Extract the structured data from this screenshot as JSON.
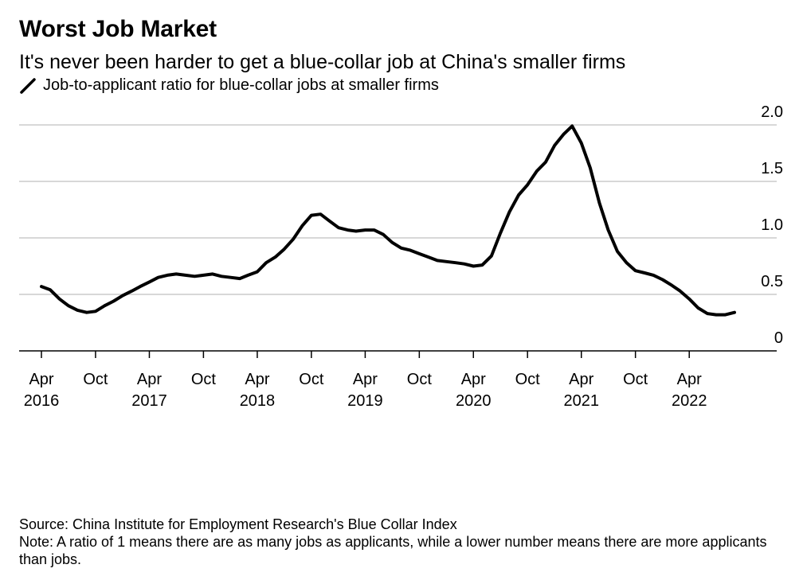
{
  "header": {
    "title": "Worst Job Market",
    "subtitle": "It's never been harder to get a blue-collar job at China's smaller firms"
  },
  "legend": {
    "label": "Job-to-applicant ratio for blue-collar jobs at smaller firms",
    "icon": "line-swatch-icon"
  },
  "footer": {
    "source": "Source: China Institute for Employment Research's Blue Collar Index",
    "note": "Note: A ratio of 1 means there are as many jobs as applicants, while a lower number means there are more applicants than jobs."
  },
  "chart_data": {
    "type": "line",
    "title": "Worst Job Market",
    "subtitle": "It's never been harder to get a blue-collar job at China's smaller firms",
    "xlabel": "",
    "ylabel": "",
    "ylim": [
      0,
      2.0
    ],
    "y_ticks": [
      0,
      0.5,
      1.0,
      1.5,
      2.0
    ],
    "y_tick_labels": [
      "0",
      "0.5",
      "1.0",
      "1.5",
      "2.0"
    ],
    "y_axis_position": "right",
    "grid": "horizontal",
    "x_ticks": [
      {
        "date": "2016-04",
        "label": "Apr",
        "year": "2016"
      },
      {
        "date": "2016-10",
        "label": "Oct",
        "year": ""
      },
      {
        "date": "2017-04",
        "label": "Apr",
        "year": "2017"
      },
      {
        "date": "2017-10",
        "label": "Oct",
        "year": ""
      },
      {
        "date": "2018-04",
        "label": "Apr",
        "year": "2018"
      },
      {
        "date": "2018-10",
        "label": "Oct",
        "year": ""
      },
      {
        "date": "2019-04",
        "label": "Apr",
        "year": "2019"
      },
      {
        "date": "2019-10",
        "label": "Oct",
        "year": ""
      },
      {
        "date": "2020-04",
        "label": "Apr",
        "year": "2020"
      },
      {
        "date": "2020-10",
        "label": "Oct",
        "year": ""
      },
      {
        "date": "2021-04",
        "label": "Apr",
        "year": "2021"
      },
      {
        "date": "2021-10",
        "label": "Oct",
        "year": ""
      },
      {
        "date": "2022-04",
        "label": "Apr",
        "year": "2022"
      }
    ],
    "series": [
      {
        "name": "Job-to-applicant ratio for blue-collar jobs at smaller firms",
        "color": "#000000",
        "x": [
          "2016-04",
          "2016-05",
          "2016-06",
          "2016-07",
          "2016-08",
          "2016-09",
          "2016-10",
          "2016-11",
          "2016-12",
          "2017-01",
          "2017-02",
          "2017-03",
          "2017-04",
          "2017-05",
          "2017-06",
          "2017-07",
          "2017-08",
          "2017-09",
          "2017-10",
          "2017-11",
          "2017-12",
          "2018-01",
          "2018-02",
          "2018-03",
          "2018-04",
          "2018-05",
          "2018-06",
          "2018-07",
          "2018-08",
          "2018-09",
          "2018-10",
          "2018-11",
          "2018-12",
          "2019-01",
          "2019-02",
          "2019-03",
          "2019-04",
          "2019-05",
          "2019-06",
          "2019-07",
          "2019-08",
          "2019-09",
          "2019-10",
          "2019-11",
          "2019-12",
          "2020-01",
          "2020-02",
          "2020-03",
          "2020-04",
          "2020-05",
          "2020-06",
          "2020-07",
          "2020-08",
          "2020-09",
          "2020-10",
          "2020-11",
          "2020-12",
          "2021-01",
          "2021-02",
          "2021-03",
          "2021-04",
          "2021-05",
          "2021-06",
          "2021-07",
          "2021-08",
          "2021-09",
          "2021-10",
          "2021-11",
          "2021-12",
          "2022-01",
          "2022-02",
          "2022-03",
          "2022-04",
          "2022-05",
          "2022-06",
          "2022-07",
          "2022-08",
          "2022-09"
        ],
        "y": [
          0.57,
          0.54,
          0.46,
          0.4,
          0.36,
          0.34,
          0.35,
          0.4,
          0.44,
          0.49,
          0.53,
          0.57,
          0.61,
          0.65,
          0.67,
          0.68,
          0.67,
          0.66,
          0.67,
          0.68,
          0.66,
          0.65,
          0.64,
          0.67,
          0.7,
          0.78,
          0.83,
          0.9,
          0.99,
          1.11,
          1.2,
          1.21,
          1.15,
          1.09,
          1.07,
          1.06,
          1.07,
          1.07,
          1.03,
          0.96,
          0.91,
          0.89,
          0.86,
          0.83,
          0.8,
          0.79,
          0.78,
          0.77,
          0.75,
          0.76,
          0.84,
          1.04,
          1.23,
          1.38,
          1.47,
          1.59,
          1.67,
          1.82,
          1.92,
          1.99,
          1.84,
          1.62,
          1.31,
          1.07,
          0.88,
          0.78,
          0.71,
          0.69,
          0.67,
          0.63,
          0.58,
          0.53,
          0.46,
          0.38,
          0.33,
          0.32,
          0.32,
          0.34
        ]
      }
    ]
  }
}
